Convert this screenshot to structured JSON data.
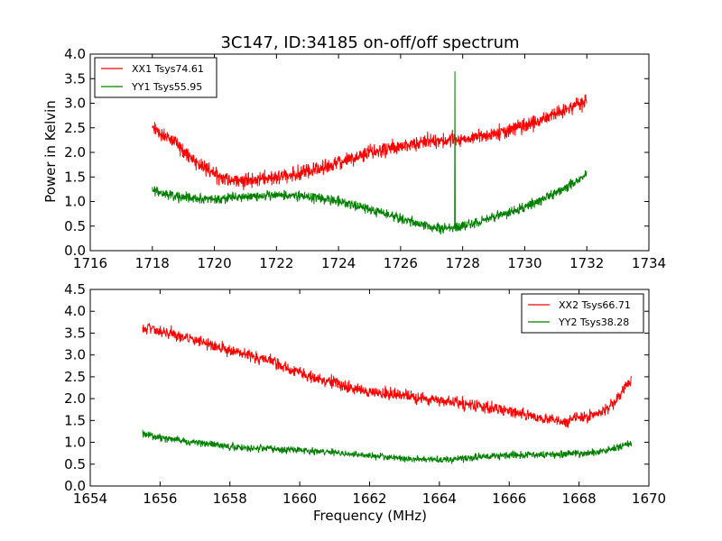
{
  "figure": {
    "background": "#ffffff"
  },
  "chart_data": [
    {
      "type": "line",
      "title": "3C147, ID:34185 on-off/off spectrum",
      "xlabel": "",
      "ylabel": "Power in Kelvin",
      "xlim": [
        1716,
        1734
      ],
      "ylim": [
        0.0,
        4.0
      ],
      "xticks": [
        "1716",
        "1718",
        "1720",
        "1722",
        "1724",
        "1726",
        "1728",
        "1730",
        "1732",
        "1734"
      ],
      "yticks": [
        "0.0",
        "0.5",
        "1.0",
        "1.5",
        "2.0",
        "2.5",
        "3.0",
        "3.5",
        "4.0"
      ],
      "grid": false,
      "legend_position": "top-left",
      "series": [
        {
          "name": "XX1 Tsys74.61",
          "color": "#ff0000",
          "x": [
            1718.0,
            1718.5,
            1719.0,
            1719.5,
            1720.0,
            1720.5,
            1721.0,
            1721.5,
            1722.0,
            1722.5,
            1723.0,
            1723.5,
            1724.0,
            1724.5,
            1725.0,
            1725.5,
            1726.0,
            1726.5,
            1727.0,
            1727.5,
            1728.0,
            1728.5,
            1729.0,
            1729.5,
            1730.0,
            1730.5,
            1731.0,
            1731.5,
            1732.0
          ],
          "values": [
            2.5,
            2.3,
            2.05,
            1.75,
            1.55,
            1.45,
            1.42,
            1.45,
            1.5,
            1.55,
            1.6,
            1.68,
            1.78,
            1.88,
            2.0,
            2.08,
            2.13,
            2.18,
            2.22,
            2.25,
            2.28,
            2.32,
            2.38,
            2.45,
            2.55,
            2.65,
            2.78,
            2.9,
            3.05
          ],
          "noise": 0.13
        },
        {
          "name": "YY1 Tsys55.95",
          "color": "#008000",
          "x": [
            1718.0,
            1718.5,
            1719.0,
            1719.5,
            1720.0,
            1720.5,
            1721.0,
            1721.5,
            1722.0,
            1722.5,
            1723.0,
            1723.5,
            1724.0,
            1724.5,
            1725.0,
            1725.5,
            1726.0,
            1726.5,
            1727.0,
            1727.5,
            1728.0,
            1728.5,
            1729.0,
            1729.5,
            1730.0,
            1730.5,
            1731.0,
            1731.5,
            1732.0
          ],
          "values": [
            1.25,
            1.15,
            1.08,
            1.05,
            1.05,
            1.07,
            1.1,
            1.12,
            1.13,
            1.12,
            1.1,
            1.06,
            1.0,
            0.93,
            0.85,
            0.75,
            0.65,
            0.55,
            0.47,
            0.45,
            0.5,
            0.58,
            0.68,
            0.78,
            0.88,
            1.02,
            1.18,
            1.35,
            1.55
          ],
          "noise": 0.09,
          "spike": {
            "x": 1727.75,
            "y": 3.65
          }
        }
      ]
    },
    {
      "type": "line",
      "title": "",
      "xlabel": "Frequency (MHz)",
      "ylabel": "",
      "xlim": [
        1654,
        1670
      ],
      "ylim": [
        0.0,
        4.5
      ],
      "xticks": [
        "1654",
        "1656",
        "1658",
        "1660",
        "1662",
        "1664",
        "1666",
        "1668",
        "1670"
      ],
      "yticks": [
        "0.0",
        "0.5",
        "1.0",
        "1.5",
        "2.0",
        "2.5",
        "3.0",
        "3.5",
        "4.0",
        "4.5"
      ],
      "grid": false,
      "legend_position": "top-right",
      "series": [
        {
          "name": "XX2 Tsys66.71",
          "color": "#ff0000",
          "x": [
            1655.5,
            1656.0,
            1656.5,
            1657.0,
            1657.5,
            1658.0,
            1658.5,
            1659.0,
            1659.5,
            1660.0,
            1660.5,
            1661.0,
            1661.5,
            1662.0,
            1662.5,
            1663.0,
            1663.5,
            1664.0,
            1664.5,
            1665.0,
            1665.5,
            1666.0,
            1666.5,
            1667.0,
            1667.5,
            1668.0,
            1668.5,
            1669.0,
            1669.5
          ],
          "values": [
            3.65,
            3.55,
            3.45,
            3.35,
            3.2,
            3.1,
            3.0,
            2.9,
            2.75,
            2.6,
            2.45,
            2.35,
            2.25,
            2.15,
            2.1,
            2.05,
            2.0,
            1.95,
            1.9,
            1.85,
            1.8,
            1.72,
            1.62,
            1.52,
            1.5,
            1.55,
            1.65,
            1.9,
            2.45
          ],
          "noise": 0.12
        },
        {
          "name": "YY2 Tsys38.28",
          "color": "#008000",
          "x": [
            1655.5,
            1656.0,
            1656.5,
            1657.0,
            1657.5,
            1658.0,
            1658.5,
            1659.0,
            1659.5,
            1660.0,
            1660.5,
            1661.0,
            1661.5,
            1662.0,
            1662.5,
            1663.0,
            1663.5,
            1664.0,
            1664.5,
            1665.0,
            1665.5,
            1666.0,
            1666.5,
            1667.0,
            1667.5,
            1668.0,
            1668.5,
            1669.0,
            1669.5
          ],
          "values": [
            1.2,
            1.1,
            1.05,
            1.0,
            0.95,
            0.9,
            0.88,
            0.86,
            0.84,
            0.82,
            0.8,
            0.77,
            0.73,
            0.7,
            0.66,
            0.62,
            0.6,
            0.6,
            0.62,
            0.65,
            0.68,
            0.7,
            0.72,
            0.72,
            0.72,
            0.74,
            0.78,
            0.85,
            0.98
          ],
          "noise": 0.07
        }
      ]
    }
  ]
}
